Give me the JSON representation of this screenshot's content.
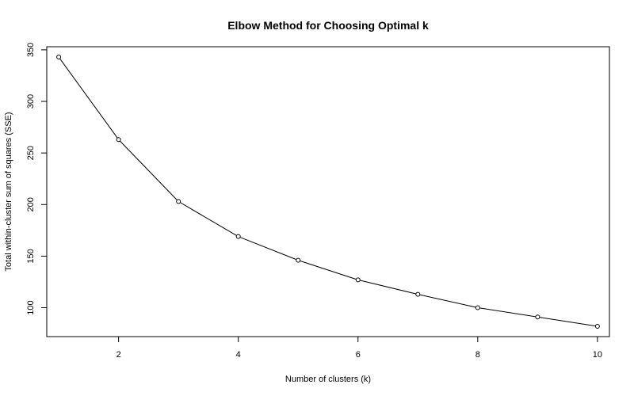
{
  "chart_data": {
    "type": "line",
    "title": "Elbow Method for Choosing Optimal k",
    "xlabel": "Number of clusters (k)",
    "ylabel": "Total within-cluster sum of squares (SSE)",
    "x": [
      1,
      2,
      3,
      4,
      5,
      6,
      7,
      8,
      9,
      10
    ],
    "series": [
      {
        "values": [
          343,
          263,
          203,
          169,
          146,
          127,
          113,
          100,
          91,
          82
        ]
      }
    ],
    "xlim": [
      0.8,
      10.2
    ],
    "ylim": [
      72,
      353
    ],
    "xticks": [
      2,
      4,
      6,
      8,
      10
    ],
    "yticks": [
      100,
      150,
      200,
      250,
      300,
      350
    ],
    "marker": "open-circle",
    "line_color": "#000000",
    "grid": false,
    "legend": "none"
  }
}
